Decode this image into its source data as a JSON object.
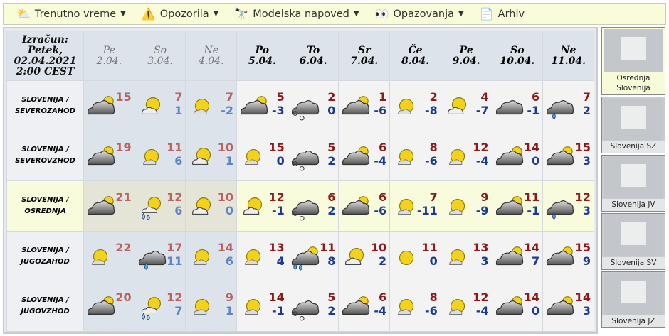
{
  "menu": [
    {
      "label": "Trenutno vreme",
      "icon": "partly-cloudy-icon",
      "dropdown": true
    },
    {
      "label": "Opozorila",
      "icon": "warning-icon",
      "dropdown": true
    },
    {
      "label": "Modelska napoved",
      "icon": "binoculars-icon",
      "dropdown": true
    },
    {
      "label": "Opazovanja",
      "icon": "observer-icon",
      "dropdown": true
    },
    {
      "label": "Arhiv",
      "icon": "document-icon",
      "dropdown": false
    }
  ],
  "calc_label": [
    "Izračun:",
    "Petek,",
    "02.04.2021",
    "2:00 CEST"
  ],
  "days": [
    {
      "day": "Pe",
      "date": "2.04.",
      "past": true
    },
    {
      "day": "So",
      "date": "3.04.",
      "past": true
    },
    {
      "day": "Ne",
      "date": "4.04.",
      "past": true
    },
    {
      "day": "Po",
      "date": "5.04."
    },
    {
      "day": "To",
      "date": "6.04."
    },
    {
      "day": "Sr",
      "date": "7.04."
    },
    {
      "day": "Če",
      "date": "8.04."
    },
    {
      "day": "Pe",
      "date": "9.04."
    },
    {
      "day": "So",
      "date": "10.04."
    },
    {
      "day": "Ne",
      "date": "11.04."
    }
  ],
  "rows": [
    {
      "region": [
        "SLOVENIJA /",
        "SEVEROZAHOD"
      ],
      "cells": [
        [
          "mostly-cloudy",
          15,
          null
        ],
        [
          "partly-cloudy",
          7,
          1
        ],
        [
          "mostly-sunny",
          7,
          -2
        ],
        [
          "mostly-cloudy",
          5,
          -3
        ],
        [
          "snow",
          2,
          0
        ],
        [
          "mostly-cloudy",
          1,
          -6
        ],
        [
          "mostly-sunny",
          2,
          -8
        ],
        [
          "partly-cloudy",
          4,
          -7
        ],
        [
          "overcast",
          6,
          -1
        ],
        [
          "rain",
          7,
          2
        ]
      ]
    },
    {
      "region": [
        "SLOVENIJA /",
        "SEVEROVZHOD"
      ],
      "cells": [
        [
          "mostly-cloudy",
          19,
          null
        ],
        [
          "mostly-sunny",
          11,
          6
        ],
        [
          "partly-cloudy",
          10,
          1
        ],
        [
          "mostly-sunny",
          15,
          0
        ],
        [
          "snow",
          5,
          2
        ],
        [
          "mostly-cloudy",
          6,
          -4
        ],
        [
          "mostly-sunny",
          8,
          -6
        ],
        [
          "mostly-sunny",
          12,
          -4
        ],
        [
          "mostly-cloudy",
          14,
          0
        ],
        [
          "mostly-cloudy",
          15,
          3
        ]
      ]
    },
    {
      "region": [
        "SLOVENIJA /",
        "OSREDNJA"
      ],
      "selected": true,
      "cells": [
        [
          "mostly-cloudy",
          21,
          null
        ],
        [
          "showers",
          12,
          6
        ],
        [
          "partly-cloudy",
          10,
          0
        ],
        [
          "partly-cloudy",
          12,
          -1
        ],
        [
          "snow",
          6,
          2
        ],
        [
          "mostly-cloudy",
          6,
          -6
        ],
        [
          "mostly-sunny",
          7,
          -11
        ],
        [
          "mostly-sunny",
          9,
          -9
        ],
        [
          "mostly-cloudy",
          11,
          -1
        ],
        [
          "rain",
          12,
          3
        ]
      ]
    },
    {
      "region": [
        "SLOVENIJA /",
        "JUGOZAHOD"
      ],
      "cells": [
        [
          "mostly-sunny",
          22,
          null
        ],
        [
          "rain",
          17,
          11
        ],
        [
          "mostly-sunny",
          14,
          6
        ],
        [
          "mostly-sunny",
          13,
          4
        ],
        [
          "heavy-rain",
          11,
          8
        ],
        [
          "partly-cloudy",
          10,
          2
        ],
        [
          "clear",
          11,
          0
        ],
        [
          "mostly-sunny",
          13,
          3
        ],
        [
          "mostly-cloudy",
          14,
          7
        ],
        [
          "mostly-cloudy",
          15,
          9
        ]
      ]
    },
    {
      "region": [
        "SLOVENIJA /",
        "JUGOVZHOD"
      ],
      "cells": [
        [
          "mostly-cloudy",
          20,
          null
        ],
        [
          "showers",
          12,
          7
        ],
        [
          "mostly-sunny",
          9,
          1
        ],
        [
          "mostly-sunny",
          14,
          -1
        ],
        [
          "snow",
          5,
          2
        ],
        [
          "mostly-cloudy",
          6,
          -4
        ],
        [
          "mostly-sunny",
          8,
          -6
        ],
        [
          "mostly-sunny",
          12,
          -4
        ],
        [
          "mostly-cloudy",
          14,
          0
        ],
        [
          "mostly-cloudy",
          14,
          3
        ]
      ]
    }
  ],
  "maps": [
    {
      "label": [
        "Osrednja",
        "Slovenija"
      ],
      "selected": true
    },
    {
      "label": [
        "Slovenija SZ"
      ]
    },
    {
      "label": [
        "Slovenija JV"
      ]
    },
    {
      "label": [
        "Slovenija SV"
      ]
    },
    {
      "label": [
        "Slovenija JZ"
      ]
    }
  ],
  "colors": {
    "menubar": "#f9fbd9",
    "selected_row": "#f8fbdc",
    "past_max": "#b86262",
    "past_min": "#5f84c4",
    "max": "#8b1a1a",
    "min": "#1c3a92"
  }
}
